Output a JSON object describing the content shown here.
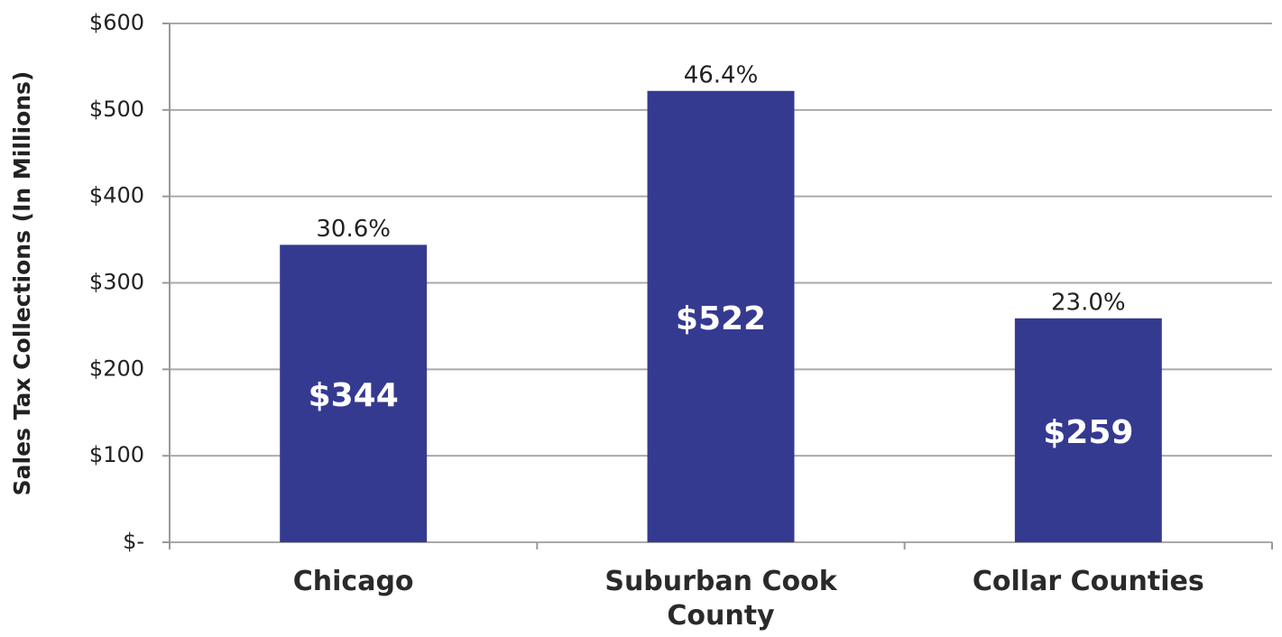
{
  "chart_data": {
    "type": "bar",
    "ylabel": "Sales Tax Collections (In Millions)",
    "categories": [
      "Chicago",
      "Suburban Cook County",
      "Collar Counties"
    ],
    "values": [
      344,
      522,
      259
    ],
    "value_labels": [
      "$344",
      "$522",
      "$259"
    ],
    "shares": [
      30.6,
      46.4,
      23.0
    ],
    "share_labels": [
      "30.6%",
      "46.4%",
      "23.0%"
    ],
    "color": "#353a91",
    "ylim": [
      0,
      600
    ],
    "yticks": [
      {
        "value": 0,
        "label": "$-"
      },
      {
        "value": 100,
        "label": "$100"
      },
      {
        "value": 200,
        "label": "$200"
      },
      {
        "value": 300,
        "label": "$300"
      },
      {
        "value": 400,
        "label": "$400"
      },
      {
        "value": 500,
        "label": "$500"
      },
      {
        "value": 600,
        "label": "$600"
      }
    ],
    "grid": true
  }
}
